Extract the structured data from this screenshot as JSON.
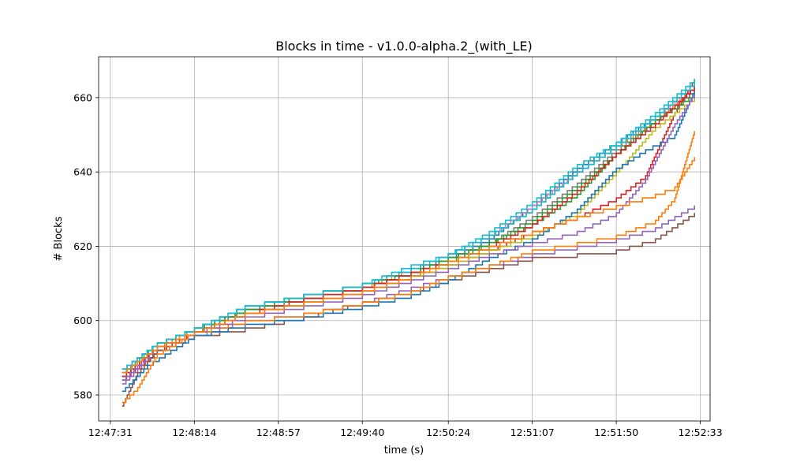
{
  "chart_data": {
    "type": "line",
    "title": "Blocks in time  -  v1.0.0-alpha.2_(with_LE)",
    "xlabel": "time (s)",
    "ylabel": "# Blocks",
    "x_axis": {
      "kind": "time",
      "min": "12:47:25",
      "max": "12:52:38",
      "ticks": [
        "12:47:31",
        "12:48:14",
        "12:48:57",
        "12:49:40",
        "12:50:24",
        "12:51:07",
        "12:51:50",
        "12:52:33"
      ]
    },
    "y_axis": {
      "min": 573,
      "max": 671,
      "ticks": [
        580,
        600,
        620,
        640,
        660
      ]
    },
    "grid": true,
    "legend": "none",
    "palette": [
      "#1f77b4",
      "#ff7f0e",
      "#2ca02c",
      "#d62728",
      "#9467bd",
      "#8c564b",
      "#e377c2",
      "#7f7f7f",
      "#bcbd22",
      "#17becf"
    ],
    "series": [
      {
        "color": "#1f77b4",
        "points": [
          [
            "12:47:37",
            587
          ],
          [
            "12:47:55",
            594
          ],
          [
            "12:48:14",
            598
          ],
          [
            "12:48:40",
            604
          ],
          [
            "12:49:10",
            607
          ],
          [
            "12:49:40",
            610
          ],
          [
            "12:50:05",
            614
          ],
          [
            "12:50:24",
            617
          ],
          [
            "12:50:45",
            622
          ],
          [
            "12:51:07",
            631
          ],
          [
            "12:51:30",
            641
          ],
          [
            "12:51:50",
            648
          ],
          [
            "12:52:10",
            655
          ],
          [
            "12:52:30",
            664
          ]
        ]
      },
      {
        "color": "#ff7f0e",
        "points": [
          [
            "12:47:37",
            586
          ],
          [
            "12:47:55",
            593
          ],
          [
            "12:48:14",
            598
          ],
          [
            "12:48:40",
            603
          ],
          [
            "12:49:10",
            606
          ],
          [
            "12:49:40",
            609
          ],
          [
            "12:50:05",
            614
          ],
          [
            "12:50:24",
            618
          ],
          [
            "12:50:45",
            623
          ],
          [
            "12:51:07",
            630
          ],
          [
            "12:51:30",
            640
          ],
          [
            "12:51:50",
            647
          ],
          [
            "12:52:10",
            654
          ],
          [
            "12:52:30",
            663
          ]
        ]
      },
      {
        "color": "#2ca02c",
        "points": [
          [
            "12:47:37",
            585
          ],
          [
            "12:47:55",
            593
          ],
          [
            "12:48:14",
            597
          ],
          [
            "12:48:40",
            603
          ],
          [
            "12:49:10",
            606
          ],
          [
            "12:49:40",
            609
          ],
          [
            "12:50:05",
            613
          ],
          [
            "12:50:24",
            616
          ],
          [
            "12:50:45",
            621
          ],
          [
            "12:51:07",
            626
          ],
          [
            "12:51:30",
            634
          ],
          [
            "12:51:50",
            645
          ],
          [
            "12:52:10",
            654
          ],
          [
            "12:52:30",
            662
          ]
        ]
      },
      {
        "color": "#d62728",
        "points": [
          [
            "12:47:37",
            584
          ],
          [
            "12:47:55",
            592
          ],
          [
            "12:48:14",
            597
          ],
          [
            "12:48:40",
            602
          ],
          [
            "12:49:10",
            605
          ],
          [
            "12:49:40",
            608
          ],
          [
            "12:50:05",
            612
          ],
          [
            "12:50:24",
            615
          ],
          [
            "12:50:45",
            619
          ],
          [
            "12:51:07",
            624
          ],
          [
            "12:51:30",
            628
          ],
          [
            "12:51:50",
            633
          ],
          [
            "12:52:05",
            639
          ],
          [
            "12:52:20",
            656
          ],
          [
            "12:52:30",
            665
          ]
        ]
      },
      {
        "color": "#9467bd",
        "points": [
          [
            "12:47:37",
            583
          ],
          [
            "12:47:55",
            592
          ],
          [
            "12:48:14",
            596
          ],
          [
            "12:48:40",
            600
          ],
          [
            "12:49:10",
            602
          ],
          [
            "12:49:40",
            605
          ],
          [
            "12:50:05",
            609
          ],
          [
            "12:50:24",
            612
          ],
          [
            "12:50:45",
            615
          ],
          [
            "12:51:07",
            618
          ],
          [
            "12:51:30",
            620
          ],
          [
            "12:51:50",
            622
          ],
          [
            "12:52:10",
            625
          ],
          [
            "12:52:30",
            631
          ]
        ]
      },
      {
        "color": "#8c564b",
        "points": [
          [
            "12:47:37",
            577
          ],
          [
            "12:47:45",
            586
          ],
          [
            "12:47:55",
            592
          ],
          [
            "12:48:14",
            596
          ],
          [
            "12:48:40",
            598
          ],
          [
            "12:49:10",
            601
          ],
          [
            "12:49:40",
            605
          ],
          [
            "12:50:05",
            608
          ],
          [
            "12:50:24",
            611
          ],
          [
            "12:50:45",
            614
          ],
          [
            "12:51:07",
            617
          ],
          [
            "12:51:30",
            618
          ],
          [
            "12:51:50",
            619
          ],
          [
            "12:52:10",
            622
          ],
          [
            "12:52:30",
            629
          ]
        ]
      },
      {
        "color": "#e377c2",
        "points": [
          [
            "12:47:37",
            586
          ],
          [
            "12:47:55",
            594
          ],
          [
            "12:48:14",
            598
          ],
          [
            "12:48:40",
            603
          ],
          [
            "12:49:10",
            607
          ],
          [
            "12:49:40",
            610
          ],
          [
            "12:50:05",
            614
          ],
          [
            "12:50:24",
            618
          ],
          [
            "12:50:45",
            623
          ],
          [
            "12:51:07",
            631
          ],
          [
            "12:51:30",
            640
          ],
          [
            "12:51:50",
            647
          ],
          [
            "12:52:10",
            655
          ],
          [
            "12:52:30",
            663
          ]
        ]
      },
      {
        "color": "#7f7f7f",
        "points": [
          [
            "12:47:37",
            585
          ],
          [
            "12:47:55",
            593
          ],
          [
            "12:48:14",
            597
          ],
          [
            "12:48:40",
            603
          ],
          [
            "12:49:10",
            606
          ],
          [
            "12:49:40",
            609
          ],
          [
            "12:50:05",
            613
          ],
          [
            "12:50:24",
            617
          ],
          [
            "12:50:45",
            621
          ],
          [
            "12:51:07",
            628
          ],
          [
            "12:51:30",
            637
          ],
          [
            "12:51:50",
            646
          ],
          [
            "12:52:10",
            654
          ],
          [
            "12:52:30",
            662
          ]
        ]
      },
      {
        "color": "#bcbd22",
        "points": [
          [
            "12:47:37",
            586
          ],
          [
            "12:47:55",
            593
          ],
          [
            "12:48:14",
            597
          ],
          [
            "12:48:40",
            602
          ],
          [
            "12:49:10",
            605
          ],
          [
            "12:49:40",
            608
          ],
          [
            "12:50:05",
            612
          ],
          [
            "12:50:24",
            615
          ],
          [
            "12:50:45",
            619
          ],
          [
            "12:51:07",
            623
          ],
          [
            "12:51:30",
            629
          ],
          [
            "12:51:50",
            640
          ],
          [
            "12:52:10",
            652
          ],
          [
            "12:52:30",
            660
          ]
        ]
      },
      {
        "color": "#17becf",
        "points": [
          [
            "12:47:37",
            587
          ],
          [
            "12:47:55",
            594
          ],
          [
            "12:48:14",
            598
          ],
          [
            "12:48:40",
            604
          ],
          [
            "12:49:10",
            607
          ],
          [
            "12:49:40",
            610
          ],
          [
            "12:50:05",
            614
          ],
          [
            "12:50:24",
            618
          ],
          [
            "12:50:45",
            624
          ],
          [
            "12:51:07",
            632
          ],
          [
            "12:51:30",
            642
          ],
          [
            "12:51:50",
            648
          ],
          [
            "12:52:10",
            656
          ],
          [
            "12:52:30",
            665
          ]
        ]
      },
      {
        "color": "#1f77b4",
        "points": [
          [
            "12:47:37",
            581
          ],
          [
            "12:47:50",
            588
          ],
          [
            "12:48:14",
            596
          ],
          [
            "12:48:40",
            599
          ],
          [
            "12:49:10",
            601
          ],
          [
            "12:49:40",
            604
          ],
          [
            "12:50:05",
            607
          ],
          [
            "12:50:24",
            611
          ],
          [
            "12:50:45",
            617
          ],
          [
            "12:51:07",
            622
          ],
          [
            "12:51:30",
            630
          ],
          [
            "12:51:50",
            641
          ],
          [
            "12:52:05",
            646
          ],
          [
            "12:52:20",
            650
          ],
          [
            "12:52:30",
            662
          ]
        ]
      },
      {
        "color": "#ff7f0e",
        "points": [
          [
            "12:47:37",
            578
          ],
          [
            "12:47:45",
            582
          ],
          [
            "12:47:55",
            591
          ],
          [
            "12:48:14",
            597
          ],
          [
            "12:48:40",
            600
          ],
          [
            "12:49:10",
            602
          ],
          [
            "12:49:40",
            605
          ],
          [
            "12:50:05",
            608
          ],
          [
            "12:50:24",
            612
          ],
          [
            "12:50:45",
            615
          ],
          [
            "12:51:07",
            619
          ],
          [
            "12:51:30",
            621
          ],
          [
            "12:51:50",
            623
          ],
          [
            "12:52:10",
            627
          ],
          [
            "12:52:20",
            633
          ],
          [
            "12:52:30",
            651
          ]
        ]
      },
      {
        "color": "#2ca02c",
        "points": [
          [
            "12:47:37",
            586
          ],
          [
            "12:47:55",
            594
          ],
          [
            "12:48:14",
            598
          ],
          [
            "12:48:40",
            603
          ],
          [
            "12:49:10",
            607
          ],
          [
            "12:49:40",
            610
          ],
          [
            "12:50:05",
            613
          ],
          [
            "12:50:24",
            617
          ],
          [
            "12:50:45",
            621
          ],
          [
            "12:51:07",
            627
          ],
          [
            "12:51:30",
            636
          ],
          [
            "12:51:50",
            645
          ],
          [
            "12:52:10",
            654
          ],
          [
            "12:52:30",
            661
          ]
        ]
      },
      {
        "color": "#d62728",
        "points": [
          [
            "12:47:37",
            585
          ],
          [
            "12:47:55",
            593
          ],
          [
            "12:48:14",
            597
          ],
          [
            "12:48:40",
            602
          ],
          [
            "12:49:10",
            606
          ],
          [
            "12:49:40",
            609
          ],
          [
            "12:50:05",
            613
          ],
          [
            "12:50:24",
            616
          ],
          [
            "12:50:45",
            620
          ],
          [
            "12:51:07",
            626
          ],
          [
            "12:51:30",
            635
          ],
          [
            "12:51:50",
            645
          ],
          [
            "12:52:10",
            653
          ],
          [
            "12:52:30",
            663
          ]
        ]
      },
      {
        "color": "#9467bd",
        "points": [
          [
            "12:47:37",
            584
          ],
          [
            "12:47:55",
            593
          ],
          [
            "12:48:14",
            597
          ],
          [
            "12:48:40",
            601
          ],
          [
            "12:49:10",
            604
          ],
          [
            "12:49:40",
            607
          ],
          [
            "12:50:05",
            611
          ],
          [
            "12:50:24",
            614
          ],
          [
            "12:50:45",
            618
          ],
          [
            "12:51:07",
            621
          ],
          [
            "12:51:30",
            624
          ],
          [
            "12:51:50",
            629
          ],
          [
            "12:52:05",
            638
          ],
          [
            "12:52:20",
            653
          ],
          [
            "12:52:30",
            661
          ]
        ]
      },
      {
        "color": "#17becf",
        "points": [
          [
            "12:47:37",
            586
          ],
          [
            "12:47:55",
            594
          ],
          [
            "12:48:14",
            598
          ],
          [
            "12:48:40",
            604
          ],
          [
            "12:49:10",
            607
          ],
          [
            "12:49:40",
            610
          ],
          [
            "12:50:05",
            615
          ],
          [
            "12:50:24",
            618
          ],
          [
            "12:50:45",
            623
          ],
          [
            "12:51:07",
            630
          ],
          [
            "12:51:30",
            640
          ],
          [
            "12:51:50",
            647
          ],
          [
            "12:52:10",
            655
          ],
          [
            "12:52:30",
            664
          ]
        ]
      },
      {
        "color": "#ff7f0e",
        "points": [
          [
            "12:47:37",
            586
          ],
          [
            "12:47:55",
            593
          ],
          [
            "12:48:14",
            597
          ],
          [
            "12:48:40",
            602
          ],
          [
            "12:49:10",
            605
          ],
          [
            "12:49:40",
            608
          ],
          [
            "12:50:05",
            612
          ],
          [
            "12:50:24",
            616
          ],
          [
            "12:50:45",
            620
          ],
          [
            "12:51:07",
            624
          ],
          [
            "12:51:30",
            628
          ],
          [
            "12:51:50",
            631
          ],
          [
            "12:52:10",
            634
          ],
          [
            "12:52:20",
            636
          ],
          [
            "12:52:30",
            644
          ]
        ]
      }
    ]
  }
}
